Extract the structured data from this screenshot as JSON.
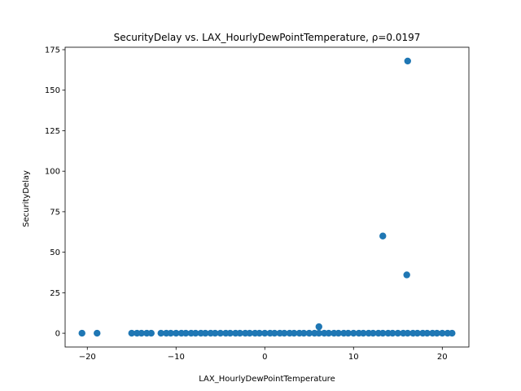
{
  "chart_data": {
    "type": "scatter",
    "title": "SecurityDelay vs. LAX_HourlyDewPointTemperature, ρ=0.0197",
    "xlabel": "LAX_HourlyDewPointTemperature",
    "ylabel": "SecurityDelay",
    "xlim": [
      -22.5,
      23.0
    ],
    "ylim": [
      -8.5,
      176.5
    ],
    "xticks": [
      -20,
      -10,
      0,
      10,
      20
    ],
    "yticks": [
      0,
      25,
      50,
      75,
      100,
      125,
      150,
      175
    ],
    "point_color": "#1f77b4",
    "grid": false,
    "points": [
      {
        "x": 16.1,
        "y": 168
      },
      {
        "x": 13.3,
        "y": 60
      },
      {
        "x": 16.0,
        "y": 36
      },
      {
        "x": 6.1,
        "y": 4
      },
      {
        "x": -20.6,
        "y": 0
      },
      {
        "x": -18.9,
        "y": 0
      },
      {
        "x": -15.0,
        "y": 0
      },
      {
        "x": -14.4,
        "y": 0
      },
      {
        "x": -13.9,
        "y": 0
      },
      {
        "x": -13.3,
        "y": 0
      },
      {
        "x": -12.8,
        "y": 0
      },
      {
        "x": -11.7,
        "y": 0
      },
      {
        "x": -11.1,
        "y": 0
      },
      {
        "x": -10.6,
        "y": 0
      },
      {
        "x": -10.0,
        "y": 0
      },
      {
        "x": -9.4,
        "y": 0
      },
      {
        "x": -8.9,
        "y": 0
      },
      {
        "x": -8.3,
        "y": 0
      },
      {
        "x": -7.8,
        "y": 0
      },
      {
        "x": -7.2,
        "y": 0
      },
      {
        "x": -6.7,
        "y": 0
      },
      {
        "x": -6.1,
        "y": 0
      },
      {
        "x": -5.6,
        "y": 0
      },
      {
        "x": -5.0,
        "y": 0
      },
      {
        "x": -4.4,
        "y": 0
      },
      {
        "x": -3.9,
        "y": 0
      },
      {
        "x": -3.3,
        "y": 0
      },
      {
        "x": -2.8,
        "y": 0
      },
      {
        "x": -2.2,
        "y": 0
      },
      {
        "x": -1.7,
        "y": 0
      },
      {
        "x": -1.1,
        "y": 0
      },
      {
        "x": -0.6,
        "y": 0
      },
      {
        "x": 0.0,
        "y": 0
      },
      {
        "x": 0.6,
        "y": 0
      },
      {
        "x": 1.1,
        "y": 0
      },
      {
        "x": 1.7,
        "y": 0
      },
      {
        "x": 2.2,
        "y": 0
      },
      {
        "x": 2.8,
        "y": 0
      },
      {
        "x": 3.3,
        "y": 0
      },
      {
        "x": 3.9,
        "y": 0
      },
      {
        "x": 4.4,
        "y": 0
      },
      {
        "x": 5.0,
        "y": 0
      },
      {
        "x": 5.6,
        "y": 0
      },
      {
        "x": 6.1,
        "y": 0
      },
      {
        "x": 6.7,
        "y": 0
      },
      {
        "x": 7.2,
        "y": 0
      },
      {
        "x": 7.8,
        "y": 0
      },
      {
        "x": 8.3,
        "y": 0
      },
      {
        "x": 8.9,
        "y": 0
      },
      {
        "x": 9.4,
        "y": 0
      },
      {
        "x": 10.0,
        "y": 0
      },
      {
        "x": 10.6,
        "y": 0
      },
      {
        "x": 11.1,
        "y": 0
      },
      {
        "x": 11.7,
        "y": 0
      },
      {
        "x": 12.2,
        "y": 0
      },
      {
        "x": 12.8,
        "y": 0
      },
      {
        "x": 13.3,
        "y": 0
      },
      {
        "x": 13.9,
        "y": 0
      },
      {
        "x": 14.4,
        "y": 0
      },
      {
        "x": 15.0,
        "y": 0
      },
      {
        "x": 15.6,
        "y": 0
      },
      {
        "x": 16.1,
        "y": 0
      },
      {
        "x": 16.7,
        "y": 0
      },
      {
        "x": 17.2,
        "y": 0
      },
      {
        "x": 17.8,
        "y": 0
      },
      {
        "x": 18.3,
        "y": 0
      },
      {
        "x": 18.9,
        "y": 0
      },
      {
        "x": 19.4,
        "y": 0
      },
      {
        "x": 20.0,
        "y": 0
      },
      {
        "x": 20.6,
        "y": 0
      },
      {
        "x": 21.1,
        "y": 0
      }
    ]
  }
}
